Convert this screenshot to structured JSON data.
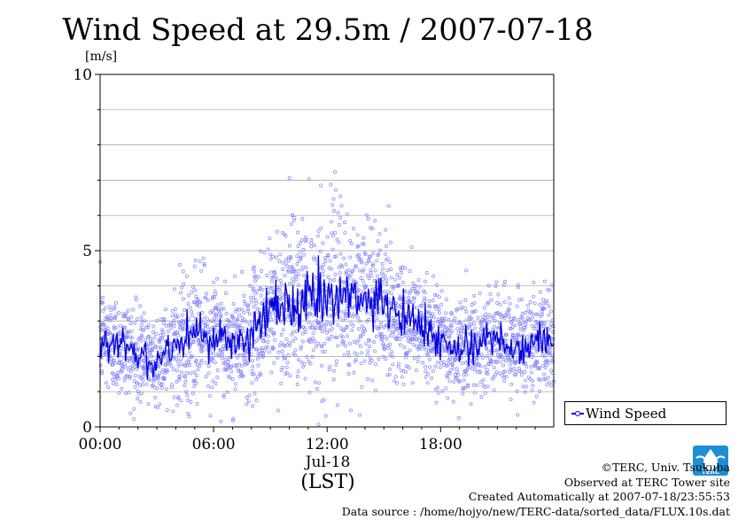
{
  "title": "Wind Speed at 29.5m / 2007-07-18",
  "chart_data": {
    "type": "scatter",
    "title": "Wind Speed at 29.5m / 2007-07-18",
    "ylabel": "[m/s]",
    "ylim": [
      0,
      10
    ],
    "yticks": [
      "0",
      "5",
      "10"
    ],
    "xlim_hours": [
      0,
      23.98
    ],
    "xticks": [
      "00:00",
      "06:00",
      "12:00",
      "18:00"
    ],
    "date_label": "Jul-18",
    "xlabel": "(LST)",
    "grid": true,
    "legend_position": "right",
    "series": [
      {
        "name": "Wind Speed",
        "style": "line+scatter",
        "color": "#0000dd",
        "scatter_color": "#8080ff",
        "mean_curve": {
          "x_hours": [
            0,
            0.5,
            1,
            1.5,
            2,
            2.5,
            3,
            3.5,
            4,
            4.5,
            5,
            5.5,
            6,
            6.5,
            7,
            7.5,
            8,
            8.5,
            9,
            9.5,
            10,
            10.5,
            11,
            11.5,
            12,
            12.5,
            13,
            13.5,
            14,
            14.5,
            15,
            15.5,
            16,
            16.5,
            17,
            17.5,
            18,
            18.5,
            19,
            19.5,
            20,
            20.5,
            21,
            21.5,
            22,
            22.5,
            23,
            23.5,
            24
          ],
          "y": [
            2.6,
            2.4,
            2.3,
            2.2,
            2.0,
            1.9,
            1.9,
            2.2,
            2.4,
            2.5,
            2.6,
            2.7,
            2.6,
            2.5,
            2.4,
            2.3,
            2.6,
            3.0,
            3.3,
            3.5,
            3.6,
            3.6,
            3.6,
            3.5,
            3.6,
            3.7,
            3.6,
            3.5,
            3.6,
            3.6,
            3.3,
            3.2,
            3.1,
            3.0,
            2.9,
            2.7,
            2.5,
            2.3,
            2.2,
            2.3,
            2.4,
            2.5,
            2.5,
            2.4,
            2.3,
            2.2,
            2.4,
            2.5,
            2.3
          ]
        },
        "scatter_spread": [
          0.75,
          0.7,
          0.7,
          0.7,
          0.65,
          0.65,
          0.65,
          0.7,
          0.75,
          0.8,
          0.8,
          0.8,
          0.8,
          0.75,
          0.75,
          0.75,
          0.8,
          0.95,
          1.05,
          1.1,
          1.15,
          1.15,
          1.15,
          1.1,
          1.1,
          1.15,
          1.15,
          1.1,
          1.1,
          1.1,
          1.0,
          0.95,
          0.9,
          0.85,
          0.8,
          0.75,
          0.75,
          0.7,
          0.7,
          0.7,
          0.75,
          0.75,
          0.75,
          0.75,
          0.7,
          0.7,
          0.75,
          0.75,
          0.7
        ]
      }
    ]
  },
  "legend": {
    "label": "Wind Speed"
  },
  "credits": {
    "copyright": "©TERC, Univ. Tsukuba",
    "observed": "Observed at TERC Tower site",
    "created": "Created Automatically at 2007-07-18/23:55:53",
    "source": "Data source : /home/hojyo/new/TERC-data/sorted_data/FLUX.10s.dat"
  },
  "logo_text": "TERC",
  "colors": {
    "series": "#0000dd",
    "scatter": "#8080ff",
    "grid": "#a0a0a0",
    "logo": "#1e8fd6"
  }
}
